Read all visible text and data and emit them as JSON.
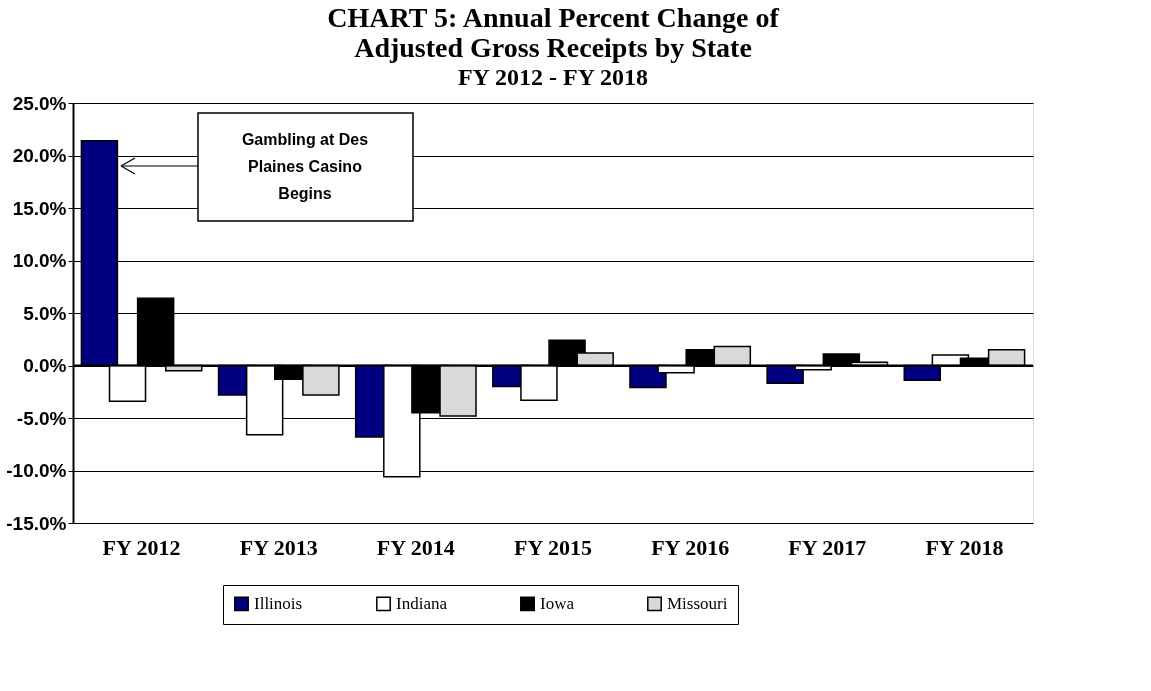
{
  "chart_data": {
    "type": "bar",
    "title": [
      "CHART 5:  Annual Percent Change of",
      "Adjusted Gross Receipts by State"
    ],
    "subtitle": "FY 2012 - FY 2018",
    "categories": [
      "FY 2012",
      "FY 2013",
      "FY 2014",
      "FY 2015",
      "FY 2016",
      "FY 2017",
      "FY 2018"
    ],
    "series": [
      {
        "name": "Illinois",
        "color": "#000080",
        "values": [
          21.4,
          -2.8,
          -6.8,
          -2.0,
          -2.1,
          -1.7,
          -1.4
        ]
      },
      {
        "name": "Indiana",
        "color": "#ffffff",
        "values": [
          -3.4,
          -6.6,
          -10.6,
          -3.3,
          -0.7,
          -0.4,
          1.0
        ]
      },
      {
        "name": "Iowa",
        "color": "#000000",
        "values": [
          6.4,
          -1.3,
          -4.5,
          2.4,
          1.5,
          1.1,
          0.7
        ]
      },
      {
        "name": "Missouri",
        "color": "#d9d9d9",
        "values": [
          -0.5,
          -2.8,
          -4.8,
          1.2,
          1.8,
          0.3,
          1.5
        ]
      }
    ],
    "ylim": [
      -15,
      25
    ],
    "yticks": [
      {
        "value": -15,
        "label": "-15.0%"
      },
      {
        "value": -10,
        "label": "-10.0%"
      },
      {
        "value": -5,
        "label": "-5.0%"
      },
      {
        "value": 0,
        "label": "0.0%"
      },
      {
        "value": 5,
        "label": "5.0%"
      },
      {
        "value": 10,
        "label": "10.0%"
      },
      {
        "value": 15,
        "label": "15.0%"
      },
      {
        "value": 20,
        "label": "20.0%"
      },
      {
        "value": 25,
        "label": "25.0%"
      }
    ],
    "grid": "y",
    "legend": "bottom",
    "annotations": [
      "Gambling at Des Plaines Casino Begins"
    ]
  }
}
